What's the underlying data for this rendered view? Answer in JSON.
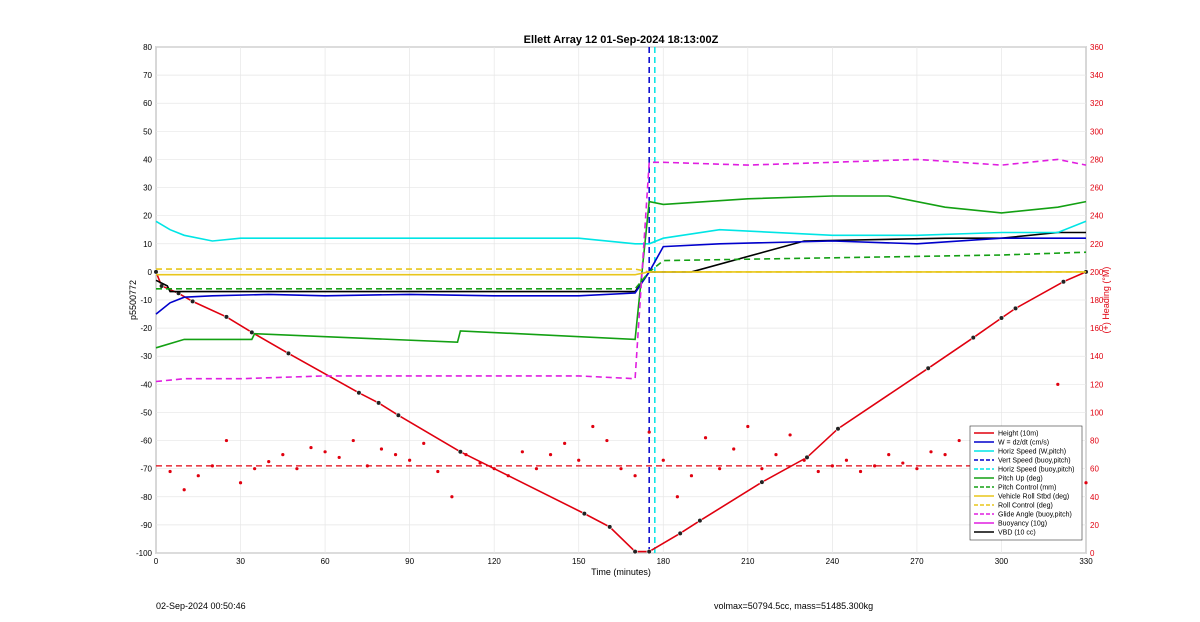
{
  "chart_data": {
    "type": "line",
    "title": "Ellett Array 12 01-Sep-2024 18:13:00Z",
    "xlabel": "Time (minutes)",
    "ylabel": "p5500772",
    "ylabel_right": "(+) Heading (°M)",
    "xlim": [
      0,
      330
    ],
    "ylim": [
      -100,
      80
    ],
    "ylim_right": [
      0,
      360
    ],
    "x_ticks": [
      "0",
      "30",
      "60",
      "90",
      "120",
      "150",
      "180",
      "210",
      "240",
      "270",
      "300",
      "330"
    ],
    "y_ticks": [
      "80",
      "70",
      "60",
      "50",
      "40",
      "30",
      "20",
      "10",
      "0",
      "-10",
      "-20",
      "-30",
      "-40",
      "-50",
      "-60",
      "-70",
      "-80",
      "-90",
      "-100"
    ],
    "y_right_ticks": [
      "360",
      "340",
      "320",
      "300",
      "280",
      "260",
      "240",
      "220",
      "200",
      "180",
      "160",
      "140",
      "120",
      "100",
      "80",
      "60",
      "40",
      "20",
      "0"
    ],
    "grid": true,
    "legend_position": "bottom-right",
    "legend": [
      {
        "label": "Height (10m)",
        "color": "#e0000f",
        "style": "solid-marker"
      },
      {
        "label": "W = dz/dt (cm/s)",
        "color": "#0000cc",
        "style": "solid"
      },
      {
        "label": "Horiz Speed (W,pitch)",
        "color": "#00e5e5",
        "style": "solid"
      },
      {
        "label": "Vert Speed (buoy,pitch)",
        "color": "#0000cc",
        "style": "dashed"
      },
      {
        "label": "Horiz Speed (buoy,pitch)",
        "color": "#00e5e5",
        "style": "dashed"
      },
      {
        "label": "Pitch Up (deg)",
        "color": "#13a013",
        "style": "solid"
      },
      {
        "label": "Pitch Control (mm)",
        "color": "#13a013",
        "style": "dashed"
      },
      {
        "label": "Vehicle Roll Stbd (deg)",
        "color": "#e8c61a",
        "style": "solid"
      },
      {
        "label": "Roll Control (deg)",
        "color": "#e8c61a",
        "style": "dashed"
      },
      {
        "label": "Glide Angle (buoy,pitch)",
        "color": "#e01ee0",
        "style": "dashed"
      },
      {
        "label": "Buoyancy (10g)",
        "color": "#e01ee0",
        "style": "solid"
      },
      {
        "label": "VBD (10 cc)",
        "color": "#000000",
        "style": "solid"
      }
    ],
    "series": [
      {
        "name": "Height (10m)",
        "color": "#e0000f",
        "style": "solid",
        "x": [
          0,
          2,
          8,
          13,
          25,
          34,
          47,
          72,
          79,
          86,
          108,
          152,
          161,
          170,
          175,
          186,
          193,
          215,
          231,
          242,
          274,
          290,
          300,
          305,
          322,
          330
        ],
        "y": [
          0,
          -5,
          -7.6,
          -10.5,
          -16,
          -21.5,
          -29,
          -43,
          -46.6,
          -51,
          -64,
          -86,
          -90.7,
          -99.5,
          -99.5,
          -93,
          -88.5,
          -74.8,
          -66,
          -55.8,
          -34.3,
          -23.4,
          -16.4,
          -13,
          -3.5,
          0
        ]
      },
      {
        "name": "VBD (10 cc)",
        "color": "#000000",
        "style": "solid",
        "x": [
          0,
          4,
          5,
          50,
          100,
          150,
          170,
          175,
          177,
          180,
          190,
          230,
          280,
          300,
          320,
          330
        ],
        "y": [
          -3,
          -5,
          -7,
          -7,
          -7,
          -7,
          -7,
          0,
          0,
          0,
          0,
          11,
          12,
          12,
          14,
          14
        ]
      },
      {
        "name": "W = dz/dt (cm/s)",
        "color": "#0000cc",
        "style": "solid",
        "x": [
          0,
          5,
          10,
          20,
          40,
          60,
          90,
          120,
          150,
          170,
          175,
          180,
          200,
          240,
          270,
          300,
          320,
          330
        ],
        "y": [
          -15,
          -11,
          -9,
          -8.5,
          -8,
          -8.5,
          -8,
          -8.5,
          -8.5,
          -7.5,
          0,
          9,
          10,
          11,
          10,
          12,
          12,
          12
        ]
      },
      {
        "name": "Horiz Speed (W,pitch)",
        "color": "#00e5e5",
        "style": "solid",
        "x": [
          0,
          5,
          10,
          20,
          30,
          60,
          90,
          120,
          150,
          170,
          175,
          180,
          200,
          240,
          270,
          300,
          320,
          330
        ],
        "y": [
          18,
          15,
          13,
          11,
          12,
          12,
          12,
          12,
          12,
          10,
          10,
          12,
          15,
          13,
          13,
          14,
          14,
          18
        ]
      },
      {
        "name": "Pitch Up (deg)",
        "color": "#13a013",
        "style": "solid",
        "x": [
          0,
          10,
          34,
          35,
          107,
          108,
          170,
          175,
          180,
          210,
          240,
          260,
          280,
          300,
          320,
          330
        ],
        "y": [
          -27,
          -24,
          -24,
          -22,
          -25,
          -21,
          -24,
          25,
          24,
          26,
          27,
          27,
          23,
          21,
          23,
          25
        ]
      },
      {
        "name": "Pitch Control (mm)",
        "color": "#13a013",
        "style": "dashed",
        "x": [
          0,
          10,
          170,
          175,
          180,
          240,
          300,
          330
        ],
        "y": [
          -6,
          -6,
          -6,
          0,
          4,
          5,
          6,
          7
        ]
      },
      {
        "name": "Glide Angle (buoy,pitch)",
        "color": "#e01ee0",
        "style": "dashed",
        "x": [
          0,
          10,
          30,
          60,
          100,
          150,
          170,
          175,
          180,
          210,
          240,
          270,
          300,
          320,
          330
        ],
        "y": [
          -39,
          -38,
          -38,
          -37,
          -37,
          -37,
          -38,
          39,
          39,
          38,
          39,
          40,
          38,
          40,
          38
        ]
      },
      {
        "name": "Vehicle Roll Stbd (deg)",
        "color": "#e8c61a",
        "style": "solid",
        "x": [
          0,
          170,
          175,
          330
        ],
        "y": [
          -1,
          -1,
          0,
          0
        ]
      },
      {
        "name": "Roll Control (deg)",
        "color": "#e8c61a",
        "style": "dashed",
        "x": [
          0,
          170,
          175,
          330
        ],
        "y": [
          1,
          1,
          0,
          0
        ]
      }
    ],
    "heading_scatter": {
      "name": "Heading",
      "color": "#e0000f",
      "axis": "right",
      "x": [
        5,
        10,
        15,
        20,
        25,
        30,
        35,
        40,
        45,
        50,
        55,
        60,
        65,
        70,
        75,
        80,
        85,
        90,
        95,
        100,
        105,
        110,
        115,
        120,
        125,
        130,
        135,
        140,
        145,
        150,
        155,
        160,
        165,
        170,
        175,
        180,
        185,
        190,
        195,
        200,
        205,
        210,
        215,
        220,
        225,
        230,
        235,
        240,
        245,
        250,
        255,
        260,
        265,
        270,
        275,
        280,
        285,
        290,
        295,
        300,
        305,
        310,
        315,
        320,
        325,
        330
      ],
      "y": [
        58,
        45,
        55,
        62,
        80,
        50,
        60,
        65,
        70,
        60,
        75,
        72,
        68,
        80,
        62,
        74,
        70,
        66,
        78,
        58,
        40,
        70,
        64,
        60,
        55,
        72,
        60,
        70,
        78,
        66,
        90,
        80,
        60,
        55,
        86,
        66,
        40,
        55,
        82,
        60,
        74,
        90,
        60,
        70,
        84,
        66,
        58,
        62,
        66,
        58,
        62,
        70,
        64,
        60,
        72,
        70,
        80,
        62,
        54,
        70,
        72,
        60,
        60,
        120,
        70,
        50
      ],
      "mean_line": 62
    },
    "heading_mean_label": "",
    "vertical_markers": [
      {
        "x": 175,
        "color": "#0000cc",
        "style": "dashed"
      },
      {
        "x": 177,
        "color": "#00e5e5",
        "style": "dashed"
      }
    ]
  },
  "footer": {
    "left": "02-Sep-2024 00:50:46",
    "right": "volmax=50794.5cc, mass=51485.300kg"
  }
}
